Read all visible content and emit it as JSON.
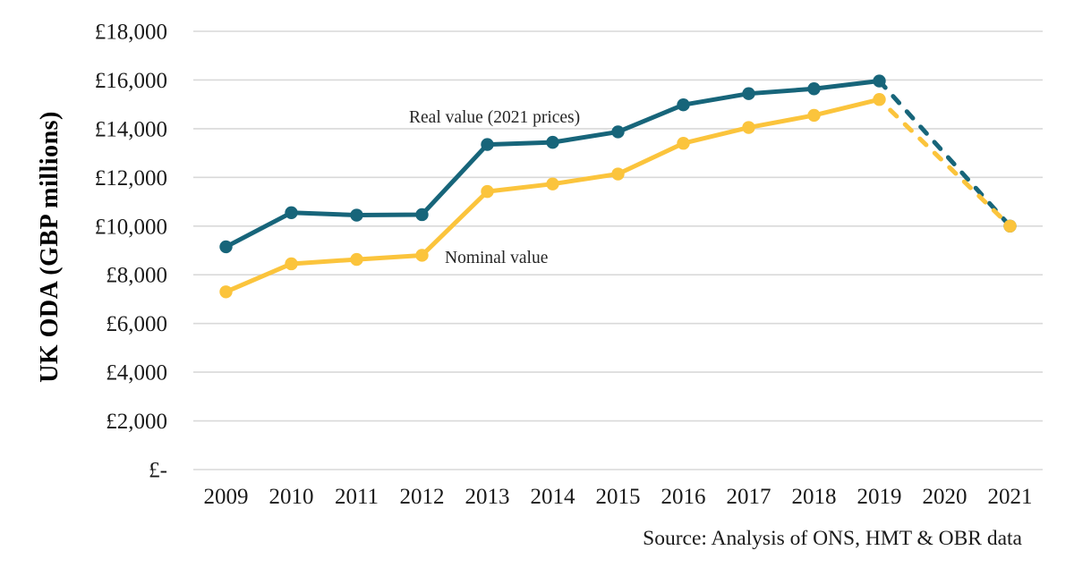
{
  "source": "Source: Analysis of ONS, HMT & OBR data",
  "chart_data": {
    "type": "line",
    "title": "",
    "ylabel": "UK ODA (GBP millions)",
    "xlabel": "",
    "categories": [
      "2009",
      "2010",
      "2011",
      "2012",
      "2013",
      "2014",
      "2015",
      "2016",
      "2017",
      "2018",
      "2019",
      "2020",
      "2021"
    ],
    "series": [
      {
        "name": "Real value (2021 prices)",
        "color": "#17657A",
        "values": [
          9150,
          10550,
          10450,
          10470,
          13350,
          13440,
          13870,
          14980,
          15440,
          15640,
          15960,
          null,
          10000
        ],
        "solid_through_year": "2019",
        "dashed_segment": {
          "from_year": "2019",
          "to_year": "2021",
          "note": "forecast, no 2020 marker"
        }
      },
      {
        "name": "Nominal value",
        "color": "#FBC43C",
        "values": [
          7300,
          8450,
          8630,
          8800,
          11420,
          11730,
          12140,
          13400,
          14050,
          14550,
          15200,
          null,
          10000
        ],
        "solid_through_year": "2019",
        "dashed_segment": {
          "from_year": "2019",
          "to_year": "2021",
          "note": "forecast, no 2020 marker"
        }
      }
    ],
    "ylim": [
      0,
      18000
    ],
    "ytick_step": 2000,
    "ytick_labels_ascending": [
      "£-",
      "£2,000",
      "£4,000",
      "£6,000",
      "£8,000",
      "£10,000",
      "£12,000",
      "£14,000",
      "£16,000",
      "£18,000"
    ],
    "grid": true,
    "gridline_color": "#D9D9D9",
    "legend_position": "inline-annotations",
    "text_color": "#1a1a1a"
  }
}
